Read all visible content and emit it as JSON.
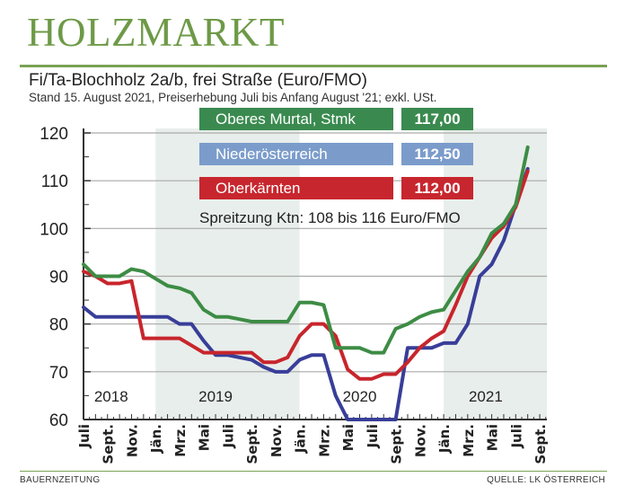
{
  "header": {
    "title": "HOLZMARKT",
    "subtitle": "Fi/Ta-Blochholz 2a/b, frei Straße (Euro/FMO)",
    "note": "Stand 15. August 2021, Preiserhebung Juli bis Anfang August '21; exkl. USt."
  },
  "footer": {
    "left": "BAUERNZEITUNG",
    "right": "QUELLE: LK ÖSTERREICH"
  },
  "chart_data": {
    "type": "line",
    "ylim": [
      60,
      120
    ],
    "yticks": [
      60,
      70,
      80,
      90,
      100,
      110,
      120
    ],
    "grid": true,
    "x_start": "2018-07",
    "x_end": "2021-09",
    "xtick_labels": [
      "Juli",
      "Sept.",
      "Nov.",
      "Jän.",
      "Mrz.",
      "Mai",
      "Juli",
      "Sept.",
      "Nov.",
      "Jän.",
      "Mrz.",
      "Mai",
      "Juli",
      "Sept.",
      "Nov.",
      "Jän.",
      "Mrz.",
      "Mai",
      "Juli",
      "Sept."
    ],
    "year_labels": [
      "2018",
      "2019",
      "2020",
      "2021"
    ],
    "shaded_years": [
      "2019",
      "2021"
    ],
    "annotation": "Spreitzung Ktn: 108 bis 116 Euro/FMO",
    "legend_placement": "top",
    "series": [
      {
        "name": "Oberes Murtal, Stmk",
        "latest": "117,00",
        "color": "#3d8c45",
        "label_color": "#3a8a4f",
        "values": [
          92.5,
          90,
          90,
          90,
          91.5,
          91,
          89.5,
          88,
          87.5,
          86.5,
          83,
          81.5,
          81.5,
          81,
          80.5,
          80.5,
          80.5,
          80.5,
          84.5,
          84.5,
          84,
          75,
          75,
          75,
          74,
          74,
          79,
          80,
          81.5,
          82.5,
          83,
          87,
          91,
          94,
          99,
          101,
          105,
          117
        ]
      },
      {
        "name": "Niederösterreich",
        "latest": "112,50",
        "color": "#383e98",
        "label_color": "#7b9ccb",
        "values": [
          83.5,
          81.5,
          81.5,
          81.5,
          81.5,
          81.5,
          81.5,
          81.5,
          80,
          80,
          76.5,
          73.5,
          73.5,
          73,
          72.5,
          71,
          70,
          70,
          72.5,
          73.5,
          73.5,
          65,
          60,
          60,
          60,
          60,
          60,
          75,
          75,
          75,
          76,
          76,
          80,
          90,
          92.5,
          97.5,
          105,
          112.5
        ]
      },
      {
        "name": "Oberkärnten",
        "latest": "112,00",
        "color": "#c8252c",
        "label_color": "#c8262e",
        "values": [
          91,
          90,
          88.5,
          88.5,
          89,
          77,
          77,
          77,
          77,
          75.5,
          74,
          74,
          74,
          74,
          74,
          72,
          72,
          73,
          77.5,
          80,
          80,
          77.5,
          70.5,
          68.5,
          68.5,
          69.5,
          69.5,
          72,
          75,
          77,
          78.5,
          84,
          90,
          94,
          98,
          100.5,
          104.5,
          112
        ]
      }
    ]
  }
}
